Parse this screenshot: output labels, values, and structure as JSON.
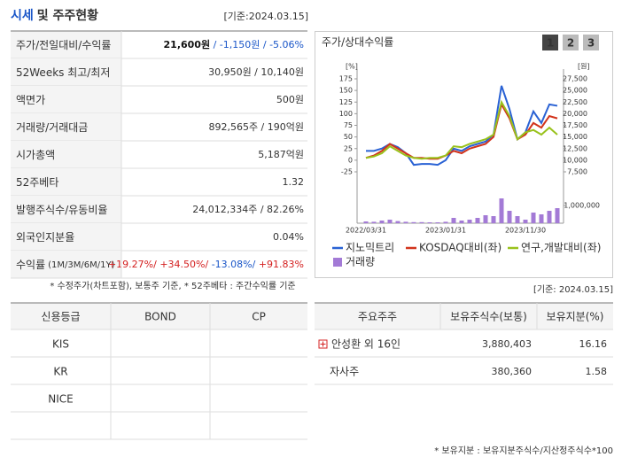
{
  "price_table": {
    "title_highlight": "시세",
    "title_rest": "및 주주현황",
    "date": "[기준:2024.03.15]",
    "rows": [
      {
        "label": "주가/전일대비/수익률",
        "parts": [
          {
            "text": "21,600원",
            "color": "#111111"
          },
          {
            "text": " / -1,150원",
            "color": "#1a56c8"
          },
          {
            "text": " / -5.06%",
            "color": "#1a56c8"
          }
        ]
      },
      {
        "label": "52Weeks 최고/최저",
        "value": "30,950원 / 10,140원"
      },
      {
        "label": "액면가",
        "value": "500원"
      },
      {
        "label": "거래량/거래대금",
        "value": "892,565주 / 190억원"
      },
      {
        "label": "시가총액",
        "value": "5,187억원"
      },
      {
        "label": "52주베타",
        "value": "1.32"
      },
      {
        "label": "발행주식수/유동비율",
        "value": "24,012,334주 / 82.26%"
      },
      {
        "label": "외국인지분율",
        "value": "0.04%"
      },
      {
        "label": "수익률",
        "label_small": "(1M/3M/6M/1Y)",
        "parts": [
          {
            "text": "+19.27%/",
            "color": "#d42020"
          },
          {
            "text": " +34.50%/",
            "color": "#d42020"
          },
          {
            "text": " -13.08%/",
            "color": "#1a56c8"
          },
          {
            "text": " +91.83%",
            "color": "#d42020"
          }
        ]
      }
    ],
    "note": "* 수정주가(차트포함), 보통주 기준, * 52주베타 : 주간수익률 기준"
  },
  "chart_panel": {
    "title": "주가/상대수익률",
    "buttons": [
      "1",
      "2",
      "3"
    ],
    "date": "[기준: 2024.03.15]",
    "chart": {
      "type": "line",
      "y_unit": "[%]",
      "y2_unit": "[원]",
      "categories": [
        "2022/03/31",
        null,
        null,
        null,
        null,
        null,
        null,
        null,
        null,
        null,
        "2023/01/31",
        null,
        null,
        null,
        null,
        null,
        null,
        null,
        null,
        null,
        "2023/11/30",
        null,
        null,
        null,
        null
      ],
      "ylim": [
        -25,
        175
      ],
      "yticks": [
        -25,
        0,
        25,
        50,
        75,
        100,
        125,
        150,
        175
      ],
      "y2lim": [
        7500,
        27500
      ],
      "y2ticks": [
        {
          "value": 7500,
          "label": "7,500"
        },
        {
          "value": 10000,
          "label": "10,000"
        },
        {
          "value": 12500,
          "label": "12,500"
        },
        {
          "value": 15000,
          "label": "15,000"
        },
        {
          "value": 17500,
          "label": "17,500"
        },
        {
          "value": 20000,
          "label": "20,000"
        },
        {
          "value": 22500,
          "label": "22,500"
        },
        {
          "value": 25000,
          "label": "25,000"
        },
        {
          "value": 27500,
          "label": "27,500"
        }
      ],
      "y3lim": [
        0,
        1500000
      ],
      "y3ticks": [
        {
          "value": 1000000,
          "label": "1,000,000"
        }
      ],
      "series": [
        {
          "name": "지노믹트리",
          "color": "#2a62d4",
          "values": [
            20,
            20,
            25,
            35,
            28,
            15,
            -10,
            -8,
            -8,
            -10,
            0,
            25,
            20,
            30,
            35,
            40,
            55,
            160,
            110,
            45,
            60,
            105,
            80,
            120,
            117
          ]
        },
        {
          "name": "KOSDAQ대비(좌)",
          "color": "#d2341c",
          "values": [
            5,
            10,
            20,
            35,
            25,
            15,
            5,
            5,
            3,
            3,
            10,
            20,
            15,
            25,
            30,
            35,
            50,
            120,
            90,
            45,
            55,
            80,
            70,
            95,
            90
          ]
        },
        {
          "name": "연구,개발대비(좌)",
          "color": "#99c21c",
          "values": [
            5,
            8,
            15,
            30,
            20,
            10,
            5,
            3,
            5,
            5,
            10,
            30,
            28,
            35,
            40,
            45,
            55,
            125,
            95,
            45,
            60,
            65,
            55,
            70,
            55
          ]
        },
        {
          "name": "거래량",
          "color": "#a37ad6",
          "axis": "y3",
          "values": [
            100000,
            80000,
            150000,
            200000,
            120000,
            80000,
            60000,
            60000,
            50000,
            50000,
            80000,
            300000,
            150000,
            200000,
            300000,
            450000,
            400000,
            1400000,
            700000,
            400000,
            200000,
            600000,
            500000,
            700000,
            850000
          ]
        }
      ]
    }
  },
  "rating_table": {
    "headers": [
      "신용등급",
      "BOND",
      "CP"
    ],
    "rows": [
      [
        "KIS"
      ],
      [
        "KR"
      ],
      [
        "NICE"
      ],
      []
    ]
  },
  "holder_table": {
    "headers": [
      "주요주주",
      "보유주식수(보통)",
      "보유지분(%)"
    ],
    "rows": [
      [
        "안성환 외 16인",
        "3,880,403",
        "16.16"
      ],
      [
        "자사주",
        "380,360",
        "1.58"
      ]
    ],
    "note": "* 보유지분 : 보유지분주식수/지산정주식수*100"
  }
}
